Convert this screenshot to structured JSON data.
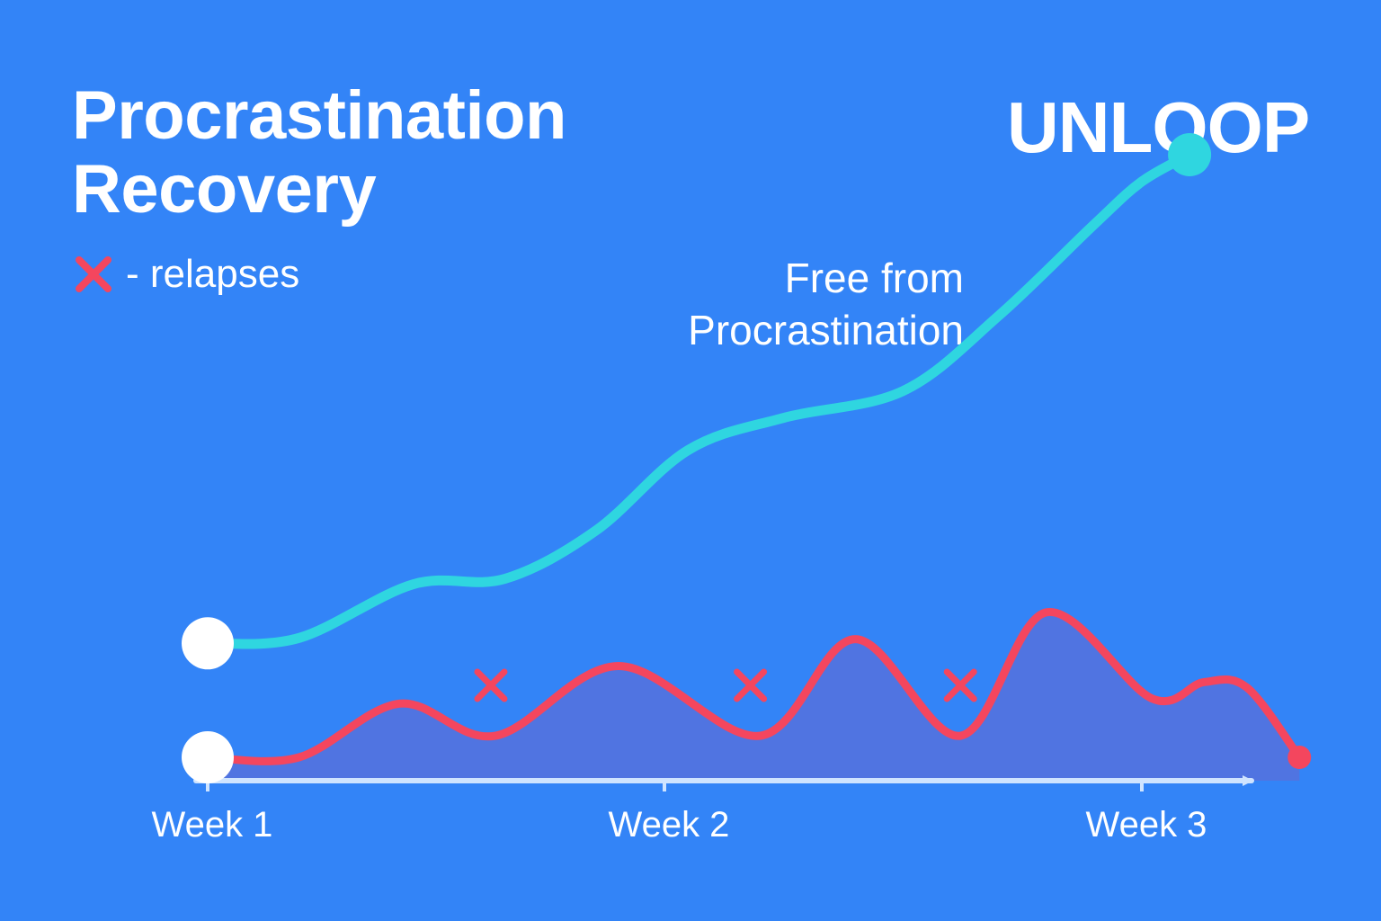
{
  "header": {
    "title_line1": "Procrastination",
    "title_line2": "Recovery",
    "brand": "UNLOOP"
  },
  "legend": {
    "marker_icon": "x-mark-icon",
    "label": "- relapses"
  },
  "annotation": {
    "line1": "Free from",
    "line2": "Procrastination"
  },
  "colors": {
    "background": "#3384f7",
    "recovery_line": "#2fd6e0",
    "relapse_line": "#f4465e",
    "relapse_fill": "#5b6fd9",
    "axis": "#cfe4ff",
    "start_marker": "#ffffff"
  },
  "chart_data": {
    "type": "line",
    "xlabel": "",
    "ylabel": "",
    "xlim": [
      1,
      3.3
    ],
    "ylim": [
      0,
      10
    ],
    "grid": false,
    "legend_placement": "top-left",
    "categories": [
      "Week 1",
      "Week 2",
      "Week 3"
    ],
    "series": [
      {
        "role": "recovery",
        "x": [
          1.0,
          1.2,
          1.45,
          1.65,
          1.85,
          2.05,
          2.25,
          2.5,
          2.7,
          2.9,
          3.0,
          3.1
        ],
        "y": [
          0.9,
          1.0,
          2.0,
          2.1,
          3.0,
          4.5,
          5.1,
          5.6,
          7.0,
          8.7,
          9.5,
          10.0
        ]
      },
      {
        "role": "relapses",
        "x": [
          1.0,
          1.2,
          1.42,
          1.63,
          1.9,
          2.2,
          2.4,
          2.62,
          2.8,
          3.02,
          3.13,
          3.22,
          3.33
        ],
        "y": [
          0.0,
          0.0,
          1.0,
          0.4,
          1.7,
          0.4,
          2.2,
          0.4,
          2.7,
          1.1,
          1.4,
          1.3,
          0.0
        ],
        "relapse_markers_x": [
          1.62,
          2.18,
          2.62
        ]
      }
    ]
  }
}
